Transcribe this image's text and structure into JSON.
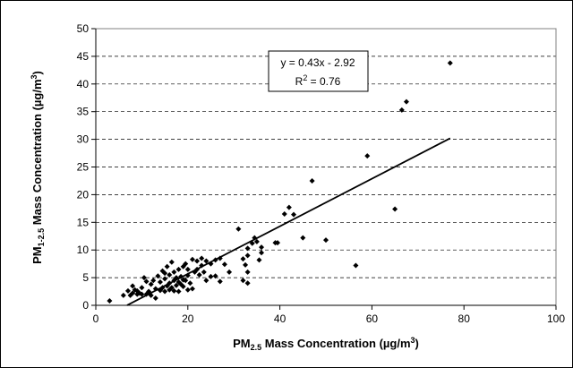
{
  "chart_data": {
    "type": "scatter",
    "x_label": [
      "PM",
      "2.5",
      " Mass Concentration (µg/m",
      "3",
      ")"
    ],
    "y_label": [
      "PM",
      "1-2.5",
      " Mass Concentration (µg/m",
      "3",
      ")"
    ],
    "equation": "y = 0.43x - 2.92",
    "r2": [
      "R",
      "2",
      " = 0.76"
    ],
    "x": [
      3,
      6,
      7,
      7.5,
      8,
      8,
      8.5,
      9,
      9,
      9.5,
      10,
      10,
      10.5,
      11,
      11,
      11.5,
      12,
      12,
      12.5,
      13,
      13,
      13.5,
      14,
      14,
      14.5,
      14.5,
      15,
      15,
      15,
      15.5,
      15.5,
      16,
      16,
      16,
      16.5,
      16.5,
      17,
      17,
      17,
      17.5,
      17.5,
      18,
      18,
      18,
      18.5,
      18.5,
      19,
      19,
      19,
      19.5,
      19.5,
      20,
      20,
      20,
      20.5,
      21,
      21,
      21.5,
      22,
      22,
      22.5,
      23,
      23,
      23.5,
      24,
      24,
      25,
      25,
      26,
      26,
      27,
      27,
      28,
      29,
      31,
      32,
      32,
      32.5,
      33,
      33,
      33,
      33,
      34,
      34.5,
      35,
      35.5,
      36,
      36,
      39,
      39.5,
      41,
      42,
      43,
      45,
      47,
      50,
      56.5,
      59,
      65,
      66.5,
      67.5,
      77
    ],
    "series": [
      {
        "color": "#000000",
        "values": [
          0.8,
          1.8,
          2.6,
          1.8,
          2.2,
          3.5,
          2.8,
          2,
          2.6,
          2.2,
          3.2,
          2,
          5,
          4.3,
          2,
          2.5,
          3.8,
          1.8,
          4.5,
          3,
          1.3,
          5.3,
          2.7,
          4.2,
          3.2,
          6.2,
          2.5,
          4.8,
          5.8,
          3.5,
          7,
          2.8,
          4,
          5.5,
          3.2,
          7.8,
          2.6,
          4.5,
          6,
          3.6,
          5,
          2.5,
          4.2,
          6.5,
          3.8,
          5.2,
          3.4,
          4.6,
          7,
          4.5,
          7.5,
          2.8,
          5.4,
          6.5,
          4,
          3,
          8.3,
          6,
          8,
          6.5,
          5.5,
          8.5,
          7.2,
          6,
          4.5,
          8,
          7.5,
          5.2,
          5.3,
          8.2,
          8.5,
          4.3,
          7.4,
          6,
          13.8,
          8.4,
          4.5,
          7.3,
          9,
          10.3,
          6,
          4,
          11.2,
          12.2,
          11.5,
          8.2,
          10.5,
          9.5,
          11.3,
          11.3,
          16.5,
          17.7,
          16.4,
          12.2,
          22.5,
          11.8,
          7.2,
          27,
          17.4,
          35.3,
          36.8,
          43.8
        ]
      }
    ],
    "trendline": {
      "slope": 0.43,
      "intercept": -2.92,
      "x_range": [
        6.8,
        77
      ]
    },
    "xlim": [
      0,
      100
    ],
    "xticks": [
      0,
      20,
      40,
      60,
      80,
      100
    ],
    "ylim": [
      0,
      50
    ],
    "yticks": [
      0,
      5,
      10,
      15,
      20,
      25,
      30,
      35,
      40,
      45,
      50
    ],
    "grid": true
  }
}
